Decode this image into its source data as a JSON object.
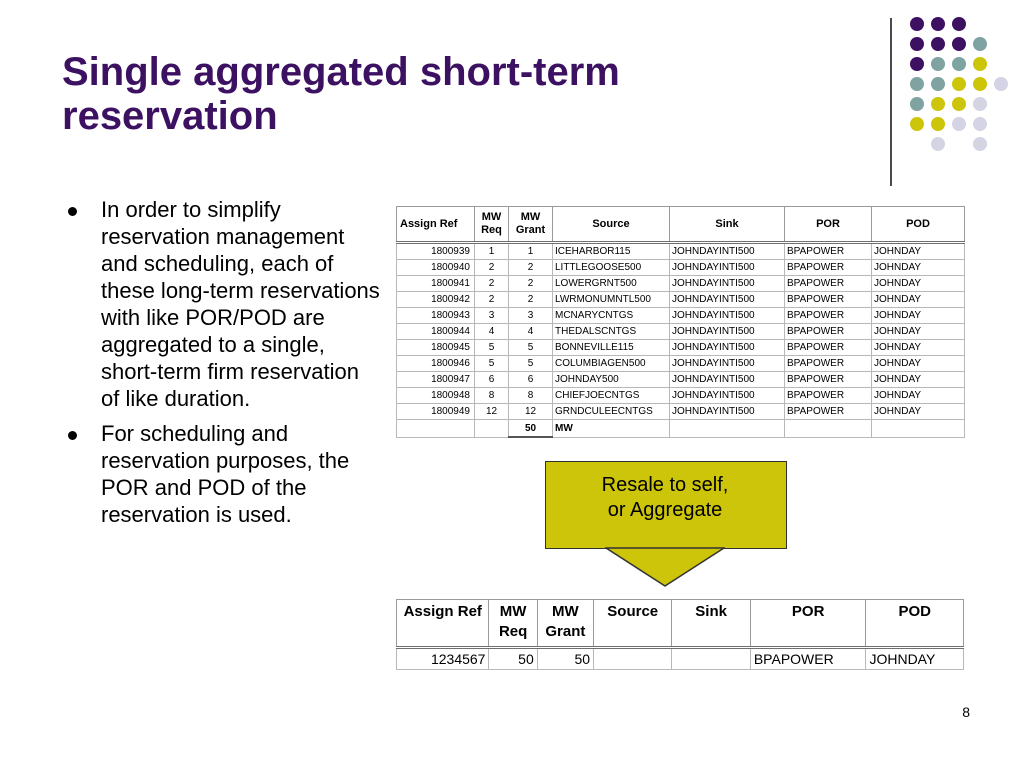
{
  "slide": {
    "title": "Single aggregated short-term reservation",
    "page_number": "8"
  },
  "bullets": [
    "In order to simplify reservation management and scheduling, each of these long-term reservations with like POR/POD are aggregated to a single, short-term firm reservation of like duration.",
    "For scheduling and reservation purposes, the POR and POD of the reservation is used."
  ],
  "table_before": {
    "headers": [
      "Assign Ref",
      "MW Req",
      "MW Grant",
      "Source",
      "Sink",
      "POR",
      "POD"
    ],
    "rows": [
      [
        "1800939",
        "1",
        "1",
        "ICEHARBOR115",
        "JOHNDAYINTI500",
        "BPAPOWER",
        "JOHNDAY"
      ],
      [
        "1800940",
        "2",
        "2",
        "LITTLEGOOSE500",
        "JOHNDAYINTI500",
        "BPAPOWER",
        "JOHNDAY"
      ],
      [
        "1800941",
        "2",
        "2",
        "LOWERGRNT500",
        "JOHNDAYINTI500",
        "BPAPOWER",
        "JOHNDAY"
      ],
      [
        "1800942",
        "2",
        "2",
        "LWRMONUMNTL500",
        "JOHNDAYINTI500",
        "BPAPOWER",
        "JOHNDAY"
      ],
      [
        "1800943",
        "3",
        "3",
        "MCNARYCNTGS",
        "JOHNDAYINTI500",
        "BPAPOWER",
        "JOHNDAY"
      ],
      [
        "1800944",
        "4",
        "4",
        "THEDALSCNTGS",
        "JOHNDAYINTI500",
        "BPAPOWER",
        "JOHNDAY"
      ],
      [
        "1800945",
        "5",
        "5",
        "BONNEVILLE115",
        "JOHNDAYINTI500",
        "BPAPOWER",
        "JOHNDAY"
      ],
      [
        "1800946",
        "5",
        "5",
        "COLUMBIAGEN500",
        "JOHNDAYINTI500",
        "BPAPOWER",
        "JOHNDAY"
      ],
      [
        "1800947",
        "6",
        "6",
        "JOHNDAY500",
        "JOHNDAYINTI500",
        "BPAPOWER",
        "JOHNDAY"
      ],
      [
        "1800948",
        "8",
        "8",
        "CHIEFJOECNTGS",
        "JOHNDAYINTI500",
        "BPAPOWER",
        "JOHNDAY"
      ],
      [
        "1800949",
        "12",
        "12",
        "GRNDCULEECNTGS",
        "JOHNDAYINTI500",
        "BPAPOWER",
        "JOHNDAY"
      ]
    ],
    "total": {
      "value": "50",
      "unit": "MW"
    }
  },
  "callout": {
    "line1": "Resale to self,",
    "line2": "or Aggregate",
    "color": "#cdc50a"
  },
  "table_after": {
    "headers": [
      "Assign Ref",
      "MW Req",
      "MW Grant",
      "Source",
      "Sink",
      "POR",
      "POD"
    ],
    "row": [
      "1234567",
      "50",
      "50",
      "",
      "",
      "BPAPOWER",
      "JOHNDAY"
    ]
  },
  "theme": {
    "title_color": "#3d1162",
    "dot_purple": "#3d1162",
    "dot_teal": "#7ea3a0",
    "dot_yellow": "#cdc50a",
    "dot_lavender": "#d4d4e4"
  }
}
